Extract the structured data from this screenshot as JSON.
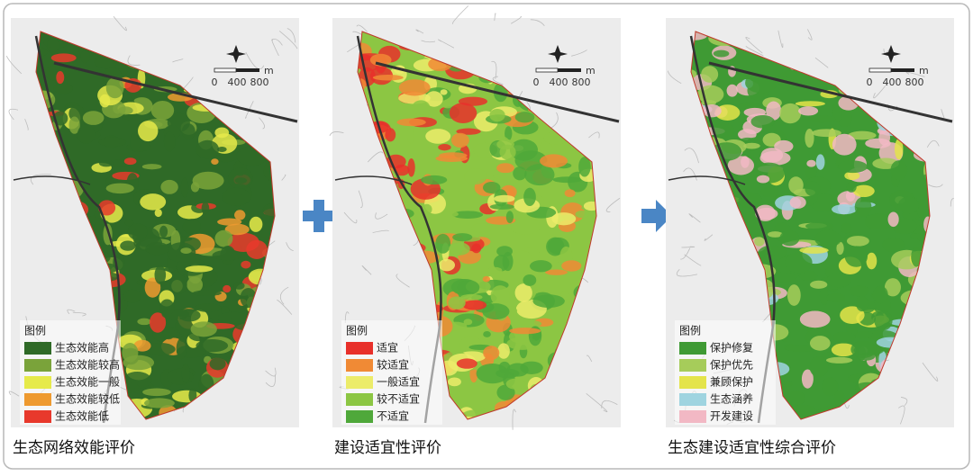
{
  "panels": [
    {
      "caption": "生态网络效能评价",
      "legend": {
        "title": "图例",
        "items": [
          {
            "label": "生态效能高",
            "color": "#2f6a27"
          },
          {
            "label": "生态效能较高",
            "color": "#7aa33a"
          },
          {
            "label": "生态效能一般",
            "color": "#e6ea4a"
          },
          {
            "label": "生态效能较低",
            "color": "#ee9a30"
          },
          {
            "label": "生态效能低",
            "color": "#e8392c"
          }
        ]
      },
      "scale": {
        "ticks": [
          0,
          400,
          800
        ],
        "unit": "m"
      }
    },
    {
      "caption": "建设适宜性评价",
      "legend": {
        "title": "图例",
        "items": [
          {
            "label": "适宜",
            "color": "#e8302a"
          },
          {
            "label": "较适宜",
            "color": "#f08a35"
          },
          {
            "label": "一般适宜",
            "color": "#ecec6a"
          },
          {
            "label": "较不适宜",
            "color": "#8cc643"
          },
          {
            "label": "不适宜",
            "color": "#4fa83a"
          }
        ]
      },
      "scale": {
        "ticks": [
          0,
          400,
          800
        ],
        "unit": "m"
      }
    },
    {
      "caption": "生态建设适宜性综合评价",
      "legend": {
        "title": "图例",
        "items": [
          {
            "label": "保护修复",
            "color": "#3f9a34"
          },
          {
            "label": "保护优先",
            "color": "#a6cc5a"
          },
          {
            "label": "兼顾保护",
            "color": "#e4e44a"
          },
          {
            "label": "生态涵养",
            "color": "#9fd4e0"
          },
          {
            "label": "开发建设",
            "color": "#f2b8c4"
          }
        ]
      },
      "scale": {
        "ticks": [
          0,
          400,
          800
        ],
        "unit": "m"
      }
    }
  ]
}
